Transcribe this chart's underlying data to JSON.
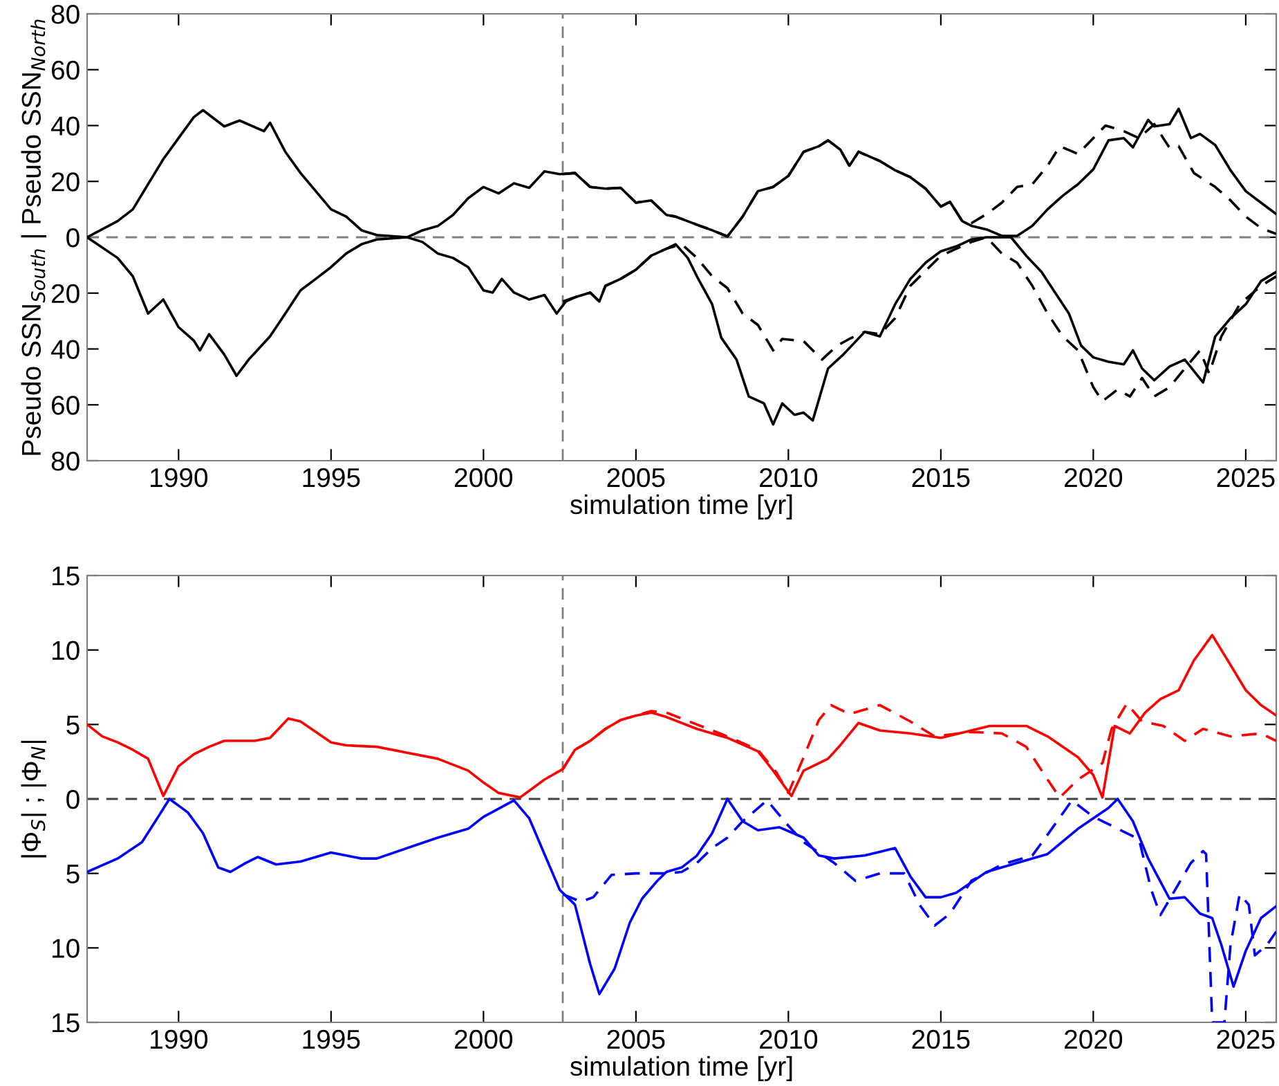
{
  "chart_data": [
    {
      "type": "line",
      "xlabel": "simulation time [yr]",
      "ylabel": "Pseudo SSN$_{South}$ | Pseudo SSN$_{North}$",
      "xlim": [
        1987,
        2026
      ],
      "xticks": [
        1990,
        1995,
        2000,
        2005,
        2010,
        2015,
        2020,
        2025
      ],
      "ylim": [
        -80,
        80
      ],
      "yticks": [
        {
          "value": -80,
          "label": "80"
        },
        {
          "value": -60,
          "label": "60"
        },
        {
          "value": -40,
          "label": "40"
        },
        {
          "value": -20,
          "label": "20"
        },
        0,
        20,
        40,
        60,
        80
      ],
      "grid": false,
      "legend": false,
      "ref_lines": [
        {
          "axis": "y",
          "value": 0,
          "color": "#808080",
          "line_style": "dashed"
        },
        {
          "axis": "x",
          "value": 2002.6,
          "color": "#808080",
          "line_style": "dashed"
        }
      ],
      "series": [
        {
          "color": "#000000",
          "line_style": "solid",
          "x": [
            1987,
            1988,
            1988.5,
            1989,
            1989.5,
            1990,
            1990.5,
            1990.8,
            1991.5,
            1992,
            1992.8,
            1993,
            1993.5,
            1994,
            1995,
            1995.5,
            1996,
            1996.5,
            1997.5,
            1998,
            1998.5,
            1999,
            1999.5,
            2000,
            2000.5,
            2001,
            2001.5,
            2002,
            2002.5,
            2003,
            2003.5,
            2004,
            2004.5,
            2005,
            2005.5,
            2006,
            2006.3,
            2007,
            2007.5,
            2008,
            2008.5,
            2009,
            2009.5,
            2010,
            2010.5,
            2011,
            2011.3,
            2011.7,
            2012,
            2012.3,
            2013,
            2013.5,
            2014,
            2014.5,
            2015,
            2015.3,
            2015.7,
            2016,
            2016.5,
            2017,
            2017.5,
            2018,
            2018.5,
            2019,
            2019.5,
            2020,
            2020.5,
            2021,
            2021.3,
            2021.8,
            2022,
            2022.5,
            2022.8,
            2023.2,
            2023.5,
            2024,
            2024.5,
            2025,
            2025.5,
            2026
          ],
          "values": [
            0,
            5.8,
            10,
            19,
            28,
            35.5,
            43,
            45.5,
            39.7,
            41.8,
            38,
            41,
            30.6,
            23,
            10,
            7.4,
            2.5,
            0.8,
            0,
            2.5,
            4,
            8,
            14,
            18,
            15.7,
            19.3,
            17.7,
            23.6,
            22.6,
            23,
            18,
            17.4,
            17.7,
            12.4,
            13.2,
            8,
            7.4,
            4.5,
            2.5,
            0.3,
            7.4,
            16.5,
            18,
            22,
            30.6,
            32.6,
            34.7,
            31.4,
            25.6,
            30.6,
            27.3,
            24,
            21.5,
            17.4,
            11,
            12.7,
            5.8,
            4.1,
            2.8,
            0.5,
            0.5,
            4.1,
            10,
            14.9,
            19,
            24.3,
            34.7,
            35.5,
            32.2,
            42,
            39.7,
            40.5,
            46,
            35.5,
            37,
            33,
            24,
            16.5,
            12.4,
            8.3
          ]
        },
        {
          "color": "#000000",
          "line_style": "dashed",
          "x": [
            2002.6,
            2003,
            2003.5,
            2004,
            2004.5,
            2005,
            2005.5,
            2006,
            2006.3,
            2007,
            2007.5,
            2008,
            2008.5,
            2009,
            2009.5,
            2010,
            2010.5,
            2011,
            2011.3,
            2011.7,
            2012,
            2012.3,
            2013,
            2013.5,
            2014,
            2014.5,
            2015,
            2015.3,
            2015.7,
            2016,
            2016.5,
            2017,
            2017.5,
            2018,
            2018.5,
            2018.9,
            2019.5,
            2020,
            2020.4,
            2021,
            2021.5,
            2022,
            2022.5,
            2022.8,
            2023.3,
            2024,
            2024.5,
            2025,
            2025.5,
            2026
          ],
          "values": [
            22.6,
            23,
            18,
            17.4,
            17.7,
            12.4,
            13.2,
            8,
            7.4,
            4.5,
            2.5,
            0.3,
            7.4,
            16.5,
            18,
            22,
            30.6,
            32.6,
            34.7,
            31.4,
            25.6,
            30.6,
            27.3,
            24,
            21.5,
            17.4,
            11,
            12.7,
            5.8,
            5,
            8.3,
            12.4,
            18,
            19,
            25.6,
            32.6,
            29.8,
            35.5,
            40,
            38,
            35.5,
            40.5,
            32,
            32.6,
            23,
            18,
            13.2,
            7.4,
            3.3,
            1.2
          ]
        },
        {
          "color": "#000000",
          "line_style": "solid",
          "x": [
            1987,
            1988,
            1988.5,
            1989,
            1989.5,
            1990,
            1990.5,
            1990.7,
            1991,
            1991.5,
            1991.9,
            1992.3,
            1993,
            1993.5,
            1994,
            1994.5,
            1995,
            1995.5,
            1996,
            1996.5,
            1997.5,
            1998,
            1998.5,
            1999,
            1999.5,
            2000,
            2000.3,
            2000.6,
            2001,
            2001.5,
            2002,
            2002.4,
            2002.7,
            2003,
            2003.5,
            2003.8,
            2004,
            2004.5,
            2005,
            2005.5,
            2006,
            2006.3,
            2006.7,
            2007,
            2007.5,
            2007.8,
            2008.3,
            2008.7,
            2009.2,
            2009.5,
            2009.8,
            2010.2,
            2010.5,
            2010.8,
            2011.3,
            2011.8,
            2012.5,
            2013,
            2013.5,
            2014,
            2014.5,
            2015,
            2015.5,
            2016,
            2016.5,
            2017.3,
            2017.8,
            2018.3,
            2018.8,
            2019.2,
            2019.6,
            2020,
            2020.5,
            2021,
            2021.3,
            2021.6,
            2022,
            2022.5,
            2023,
            2023.6,
            2024,
            2024.5,
            2025,
            2025.5,
            2026
          ],
          "values": [
            0,
            -7.4,
            -14,
            -27.3,
            -22.3,
            -32.2,
            -37,
            -40.5,
            -34.7,
            -42,
            -49.6,
            -43.8,
            -35.5,
            -27.3,
            -19,
            -14.9,
            -10.7,
            -5.8,
            -2.5,
            -0.8,
            0,
            -1.7,
            -5.8,
            -7.4,
            -10.7,
            -19,
            -19.8,
            -14.9,
            -19.8,
            -22.3,
            -20.7,
            -27.3,
            -23,
            -21.5,
            -19.8,
            -23,
            -17.4,
            -14.9,
            -11.6,
            -6.6,
            -4.1,
            -2.5,
            -7.4,
            -14,
            -24,
            -36,
            -43.8,
            -57,
            -59.5,
            -67,
            -59.5,
            -63.6,
            -62.8,
            -65.6,
            -47,
            -42,
            -33.9,
            -35.5,
            -24,
            -14.9,
            -9.1,
            -5,
            -3.3,
            -0.8,
            0,
            0,
            -6.6,
            -12.4,
            -20.7,
            -27.3,
            -38.8,
            -43,
            -44.6,
            -45.5,
            -40.5,
            -47,
            -51.2,
            -46.3,
            -43.8,
            -52,
            -35.5,
            -29,
            -24,
            -15.7,
            -12.4
          ]
        },
        {
          "color": "#000000",
          "line_style": "dashed",
          "x": [
            2002.6,
            2003,
            2003.5,
            2003.8,
            2004,
            2004.5,
            2005,
            2005.5,
            2006,
            2006.5,
            2007,
            2007.5,
            2008,
            2008.5,
            2009,
            2009.5,
            2009.8,
            2010.5,
            2011.1,
            2011.6,
            2012,
            2012.5,
            2013,
            2013.5,
            2014,
            2015,
            2016,
            2016.5,
            2017,
            2017.5,
            2018,
            2018.5,
            2019,
            2019.5,
            2020,
            2020.3,
            2020.8,
            2021.2,
            2021.6,
            2022,
            2022.5,
            2023,
            2023.5,
            2023.8,
            2024.2,
            2024.8,
            2025.5,
            2026
          ],
          "values": [
            -23,
            -21.5,
            -19.8,
            -23,
            -17.4,
            -14.9,
            -11.6,
            -6.6,
            -4.1,
            -2.5,
            -7.4,
            -14,
            -18.2,
            -27.3,
            -31.4,
            -40.5,
            -36.4,
            -37.2,
            -43.8,
            -38.8,
            -36.4,
            -33.9,
            -34.7,
            -29,
            -17.4,
            -6.6,
            -1.7,
            0,
            -5.8,
            -9.1,
            -17.4,
            -27.3,
            -35.5,
            -40.5,
            -53.7,
            -58.7,
            -54.5,
            -57,
            -50.4,
            -57,
            -53.7,
            -47,
            -40.5,
            -48.8,
            -35.5,
            -24,
            -17.4,
            -14
          ]
        }
      ]
    },
    {
      "type": "line",
      "xlabel": "simulation time [yr]",
      "ylabel": "|Φ$_{S}$| ; |Φ$_{N}$|",
      "xlim": [
        1987,
        2026
      ],
      "xticks": [
        1990,
        1995,
        2000,
        2005,
        2010,
        2015,
        2020,
        2025
      ],
      "ylim": [
        -15,
        15
      ],
      "yticks": [
        {
          "value": -15,
          "label": "15"
        },
        {
          "value": -10,
          "label": "10"
        },
        {
          "value": -5,
          "label": "5"
        },
        0,
        5,
        10,
        15
      ],
      "grid": false,
      "legend": false,
      "ref_lines": [
        {
          "axis": "y",
          "value": 0,
          "color": "#404040",
          "line_style": "dashed"
        },
        {
          "axis": "x",
          "value": 2002.6,
          "color": "#808080",
          "line_style": "dashed"
        }
      ],
      "series": [
        {
          "color": "#ff0000",
          "line_style": "solid",
          "x": [
            1987,
            1987.5,
            1988,
            1988.5,
            1989,
            1989.5,
            1990,
            1990.5,
            1991,
            1991.5,
            1992.5,
            1993,
            1993.6,
            1994,
            1995,
            1995.5,
            1996.5,
            1997.5,
            1998.5,
            1999.5,
            2000,
            2000.5,
            2001.2,
            2002,
            2002.6,
            2003,
            2003.5,
            2004,
            2004.5,
            2005,
            2005.5,
            2006,
            2007,
            2008,
            2009,
            2009.5,
            2010.1,
            2010.5,
            2011.3,
            2011.7,
            2012.3,
            2013,
            2014,
            2015,
            2016,
            2016.6,
            2017.8,
            2018.5,
            2019.5,
            2020,
            2020.3,
            2020.7,
            2021.2,
            2021.7,
            2022.2,
            2022.8,
            2023.3,
            2023.9,
            2024.5,
            2025,
            2025.5,
            2026
          ],
          "values": [
            5.0,
            4.2,
            3.8,
            3.3,
            2.7,
            0.2,
            2.2,
            3.0,
            3.5,
            3.9,
            3.9,
            4.1,
            5.4,
            5.2,
            3.8,
            3.6,
            3.5,
            3.1,
            2.7,
            1.9,
            1.1,
            0.4,
            0.1,
            1.3,
            2.0,
            3.3,
            3.9,
            4.7,
            5.3,
            5.6,
            5.8,
            5.5,
            4.7,
            4.1,
            3.2,
            1.9,
            0.2,
            1.9,
            2.7,
            3.6,
            5.1,
            4.6,
            4.4,
            4.1,
            4.6,
            4.9,
            4.9,
            4.2,
            2.8,
            1.6,
            0.1,
            4.9,
            4.4,
            5.8,
            6.7,
            7.3,
            9.3,
            11.0,
            9.0,
            7.3,
            6.3,
            5.6
          ]
        },
        {
          "color": "#ff0000",
          "line_style": "dashed",
          "x": [
            2002.6,
            2003,
            2003.5,
            2004,
            2004.5,
            2005.5,
            2006,
            2007,
            2008,
            2009,
            2009.6,
            2010,
            2010.5,
            2011,
            2011.4,
            2012,
            2013,
            2014,
            2014.8,
            2016,
            2017,
            2017.8,
            2018.5,
            2018.9,
            2019.5,
            2020.3,
            2020.6,
            2021.1,
            2021.6,
            2022.3,
            2023,
            2023.6,
            2024.5,
            2025.5,
            2026
          ],
          "values": [
            2.0,
            3.3,
            3.9,
            4.7,
            5.3,
            5.9,
            5.8,
            5.0,
            4.2,
            3.3,
            1.8,
            0.4,
            2.8,
            5.3,
            6.3,
            5.7,
            6.3,
            5.2,
            4.2,
            4.5,
            4.4,
            3.5,
            1.3,
            0.1,
            1.3,
            2.4,
            4.7,
            6.4,
            5.2,
            4.9,
            3.9,
            4.7,
            4.2,
            4.4,
            3.9
          ]
        },
        {
          "color": "#0000ff",
          "line_style": "solid",
          "x": [
            1987,
            1988,
            1988.8,
            1989.3,
            1989.7,
            1990.3,
            1990.8,
            1991.3,
            1991.7,
            1992.2,
            1992.6,
            1993.2,
            1994,
            1995,
            1996,
            1996.5,
            1997.5,
            1998.5,
            1999.5,
            2000,
            2001,
            2001.5,
            2002,
            2002.5,
            2003,
            2003.5,
            2003.8,
            2004.3,
            2004.8,
            2005.2,
            2005.7,
            2006,
            2006.5,
            2007,
            2007.5,
            2008,
            2008.5,
            2009,
            2009.7,
            2010.5,
            2011,
            2011.5,
            2012.5,
            2013.5,
            2014,
            2014.5,
            2015,
            2015.5,
            2016.5,
            2017.5,
            2018.5,
            2019.5,
            2020.5,
            2020.8,
            2021.3,
            2021.8,
            2022.5,
            2023,
            2023.5,
            2023.9,
            2024.2,
            2024.6,
            2025,
            2025.5,
            2026
          ],
          "values": [
            -4.9,
            -4.0,
            -2.9,
            -1.3,
            0,
            -0.9,
            -2.3,
            -4.6,
            -4.9,
            -4.3,
            -3.9,
            -4.4,
            -4.2,
            -3.6,
            -4.0,
            -4.0,
            -3.3,
            -2.6,
            -2.0,
            -1.2,
            -0.1,
            -1.3,
            -3.7,
            -6.1,
            -7.1,
            -11.1,
            -13.1,
            -11.4,
            -8.3,
            -6.7,
            -5.5,
            -4.9,
            -4.6,
            -3.8,
            -2.3,
            0,
            -1.5,
            -2.1,
            -1.9,
            -2.6,
            -3.8,
            -4.0,
            -3.8,
            -3.3,
            -5.2,
            -6.6,
            -6.6,
            -6.3,
            -4.9,
            -4.3,
            -3.7,
            -2.0,
            -0.6,
            0,
            -1.5,
            -4.0,
            -6.7,
            -6.6,
            -7.7,
            -8.0,
            -9.8,
            -12.6,
            -10.2,
            -8.0,
            -7.2
          ]
        },
        {
          "color": "#0000ff",
          "line_style": "dashed",
          "x": [
            2002.6,
            2003.2,
            2003.6,
            2004.2,
            2005,
            2006,
            2006.5,
            2007,
            2007.5,
            2008,
            2008.5,
            2009.3,
            2010,
            2010.5,
            2011.5,
            2012.2,
            2013,
            2013.8,
            2014.3,
            2014.8,
            2015.3,
            2016,
            2017,
            2018,
            2018.5,
            2019.3,
            2020,
            2020.8,
            2021.5,
            2021.9,
            2022.2,
            2022.6,
            2023.2,
            2023.6,
            2023.7,
            2023.9,
            2024.3,
            2024.5,
            2024.8,
            2025.1,
            2025.3,
            2025.7,
            2026
          ],
          "values": [
            -6.4,
            -6.9,
            -6.6,
            -5.1,
            -5.0,
            -5.0,
            -4.9,
            -4.3,
            -3.3,
            -2.6,
            -1.5,
            -0.1,
            -1.8,
            -2.9,
            -4.3,
            -5.5,
            -5.0,
            -5.0,
            -7.1,
            -8.5,
            -7.7,
            -5.5,
            -4.4,
            -3.8,
            -2.4,
            -0.1,
            -1.2,
            -2.0,
            -2.7,
            -6.1,
            -7.8,
            -6.4,
            -4.3,
            -3.5,
            -3.7,
            -15,
            -15,
            -9.8,
            -6.4,
            -7.1,
            -10.5,
            -9.8,
            -8.9
          ]
        }
      ]
    }
  ]
}
